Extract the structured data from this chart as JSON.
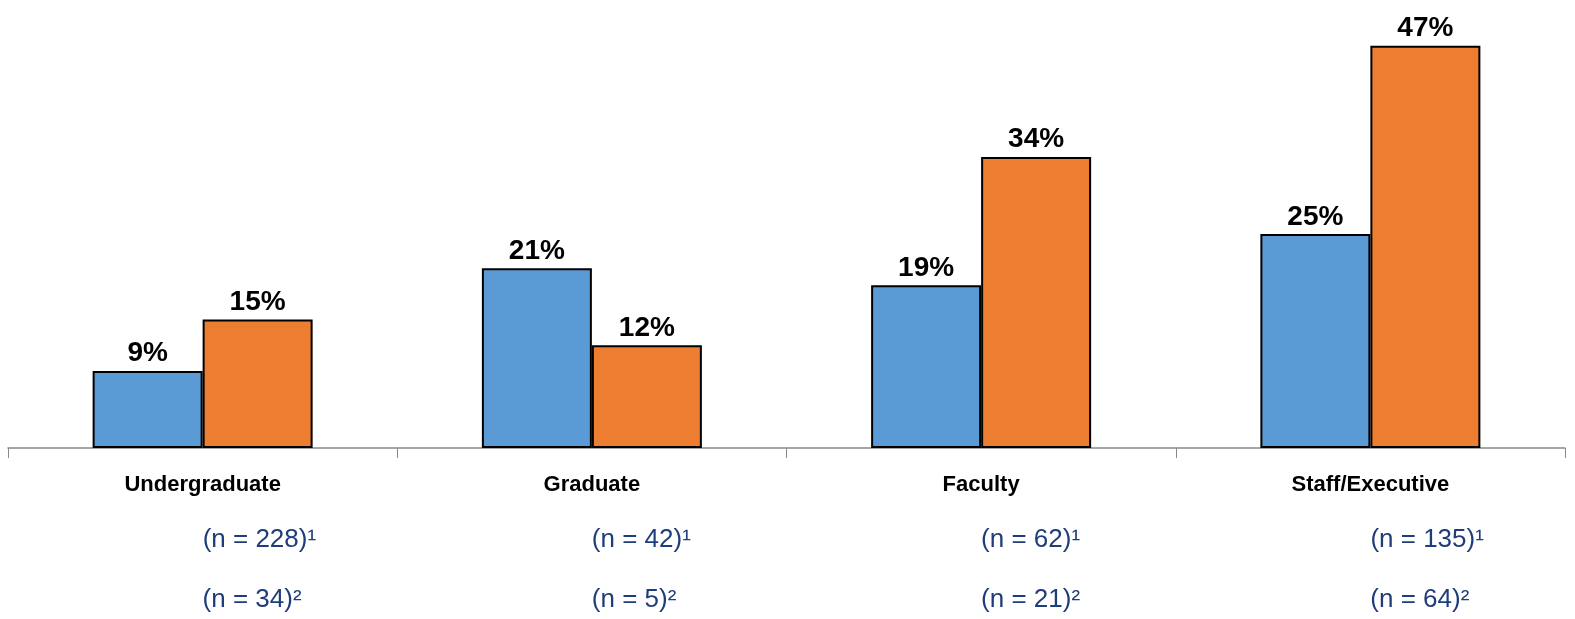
{
  "chart_data": {
    "type": "bar",
    "categories": [
      "Undergraduate",
      "Graduate",
      "Faculty",
      "Staff/Executive"
    ],
    "series": [
      {
        "color": "#5b9bd5",
        "values": [
          9,
          21,
          19,
          25
        ],
        "value_labels": [
          "9%",
          "21%",
          "19%",
          "25%"
        ]
      },
      {
        "color": "#ed7d31",
        "values": [
          15,
          12,
          34,
          47
        ],
        "value_labels": [
          "15%",
          "12%",
          "34%",
          "47%"
        ]
      }
    ],
    "annotations": [
      "(n = 228)¹",
      "(n = 34)²",
      "(n = 42)¹",
      "(n = 5)²",
      "(n = 62)¹",
      "(n = 21)²",
      "(n = 135)¹",
      "(n = 64)²"
    ]
  }
}
